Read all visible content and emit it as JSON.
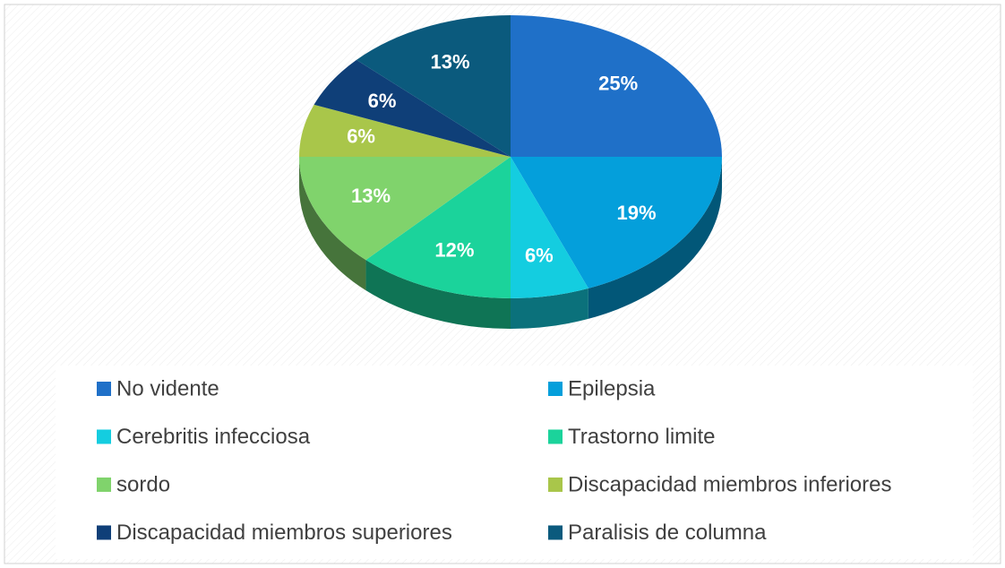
{
  "chart_data": {
    "type": "pie",
    "categories": [
      "No vidente",
      "Epilepsia",
      "Cerebritis infecciosa",
      "Trastorno limite",
      "sordo",
      "Discapacidad miembros inferiores",
      "Discapacidad miembros superiores",
      "Paralisis de columna"
    ],
    "values": [
      25,
      19,
      6,
      12,
      13,
      6,
      6,
      13
    ],
    "value_labels": [
      "25%",
      "19%",
      "6%",
      "12%",
      "13%",
      "6%",
      "6%",
      "13%"
    ],
    "colors": [
      "#1f70c8",
      "#049fdb",
      "#14cde0",
      "#1bd39b",
      "#80d36c",
      "#a9c64a",
      "#0f3f78",
      "#0b5a7d"
    ],
    "legend": "bottom"
  }
}
